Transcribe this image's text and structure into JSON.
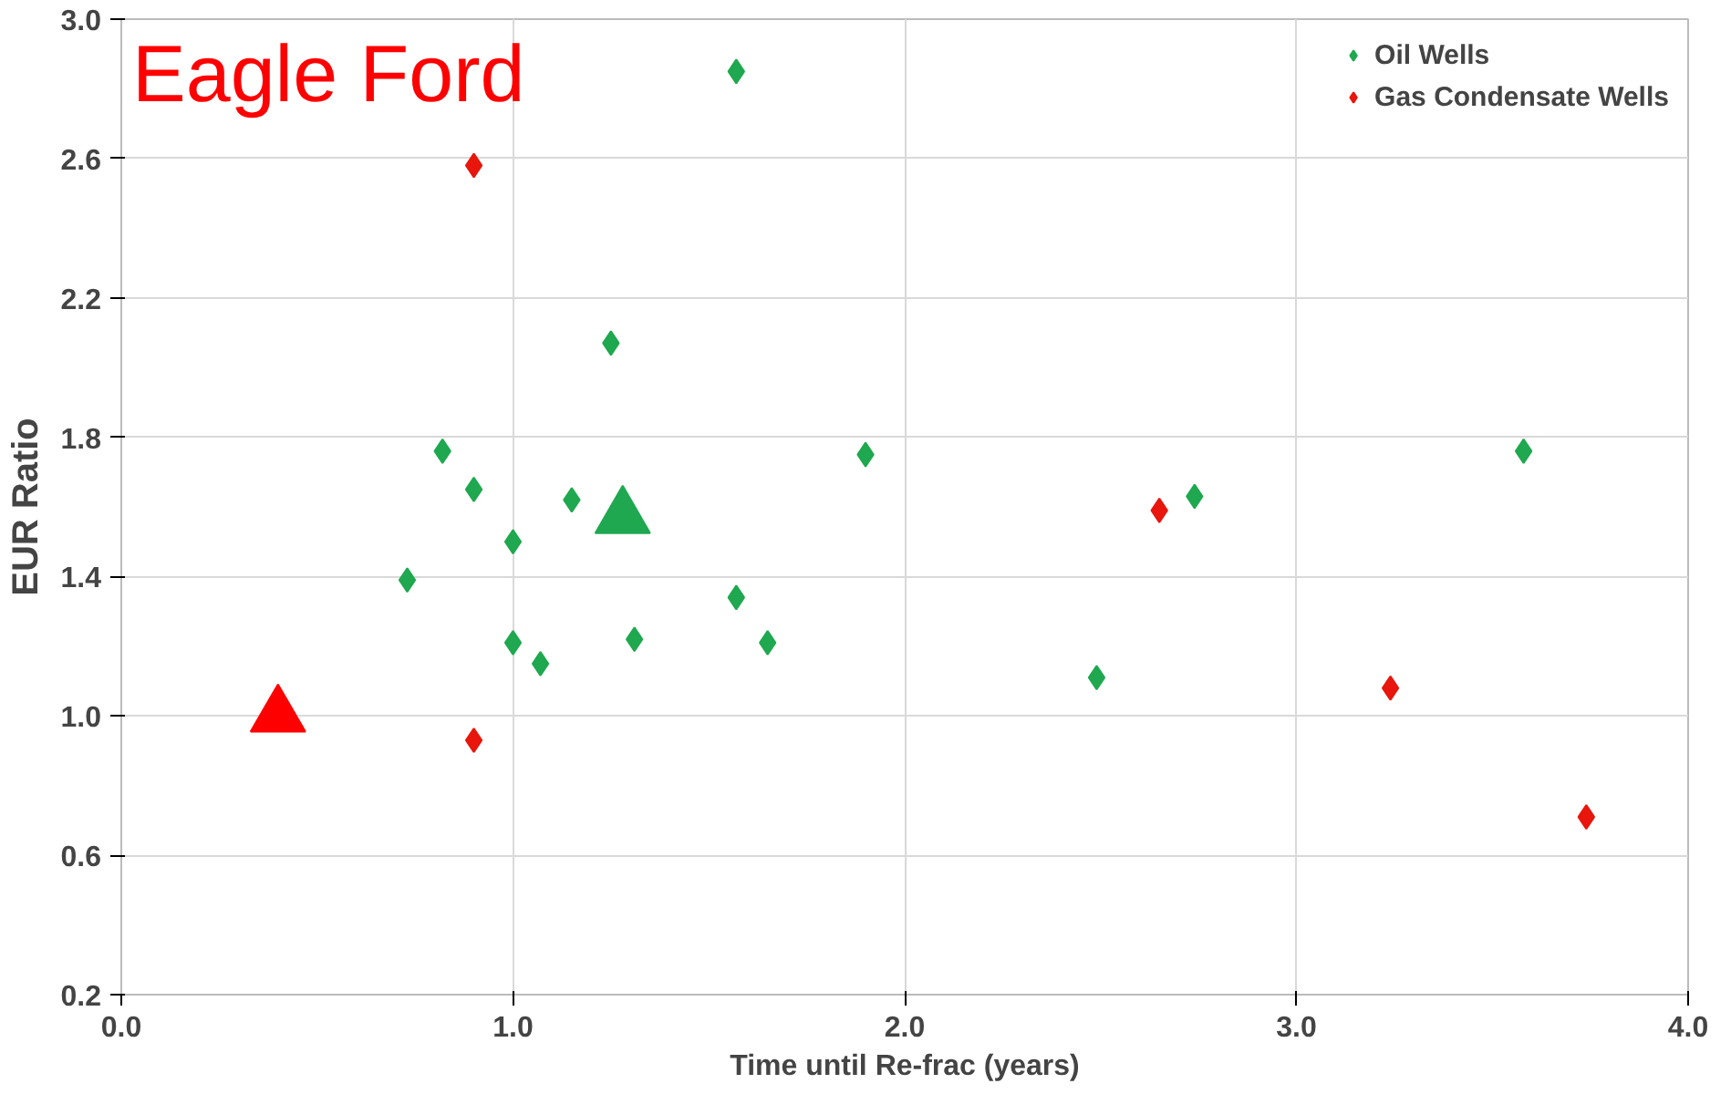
{
  "chart_data": {
    "type": "scatter",
    "xlabel": "Time until Re-frac (years)",
    "ylabel": "EUR Ratio",
    "annotations": [
      "Eagle Ford"
    ],
    "xlim": [
      0,
      4
    ],
    "xticks": [
      {
        "value": 0,
        "label": "0.0"
      },
      {
        "value": 1,
        "label": "1.0"
      },
      {
        "value": 2,
        "label": "2.0"
      },
      {
        "value": 3,
        "label": "3.0"
      },
      {
        "value": 4,
        "label": "4.0"
      }
    ],
    "ylim": [
      0.2,
      3.0
    ],
    "yticks": [
      {
        "value": 0.2,
        "label": "0.2"
      },
      {
        "value": 0.6,
        "label": "0.6"
      },
      {
        "value": 1.0,
        "label": "1.0"
      },
      {
        "value": 1.4,
        "label": "1.4"
      },
      {
        "value": 1.8,
        "label": "1.8"
      },
      {
        "value": 2.2,
        "label": "2.2"
      },
      {
        "value": 2.6,
        "label": "2.6"
      },
      {
        "value": 3.0,
        "label": "3.0"
      }
    ],
    "grid": true,
    "legend": "top right",
    "marker": "diamond",
    "series": [
      {
        "name": "Oil Wells",
        "color": "#1fa84f",
        "x": [
          0.73,
          0.82,
          0.9,
          1.0,
          1.0,
          1.07,
          1.15,
          1.25,
          1.31,
          1.57,
          1.65,
          1.9,
          2.49,
          2.74,
          3.58,
          1.57
        ],
        "values": [
          1.39,
          1.76,
          1.65,
          1.5,
          1.21,
          1.15,
          1.62,
          2.07,
          1.22,
          1.34,
          1.21,
          1.75,
          1.11,
          1.63,
          1.76,
          2.85
        ]
      },
      {
        "name": "Gas Condensate Wells",
        "color": "#e8160c",
        "x": [
          0.9,
          0.9,
          2.65,
          3.24,
          3.74
        ],
        "values": [
          2.58,
          0.93,
          1.59,
          1.08,
          0.71
        ]
      },
      {
        "color": "#1fa84f",
        "marker": "triangle",
        "x": [
          1.28
        ],
        "values": [
          1.57
        ]
      },
      {
        "color": "#ff0000",
        "marker": "triangle",
        "x": [
          0.4
        ],
        "values": [
          1.0
        ]
      }
    ]
  }
}
